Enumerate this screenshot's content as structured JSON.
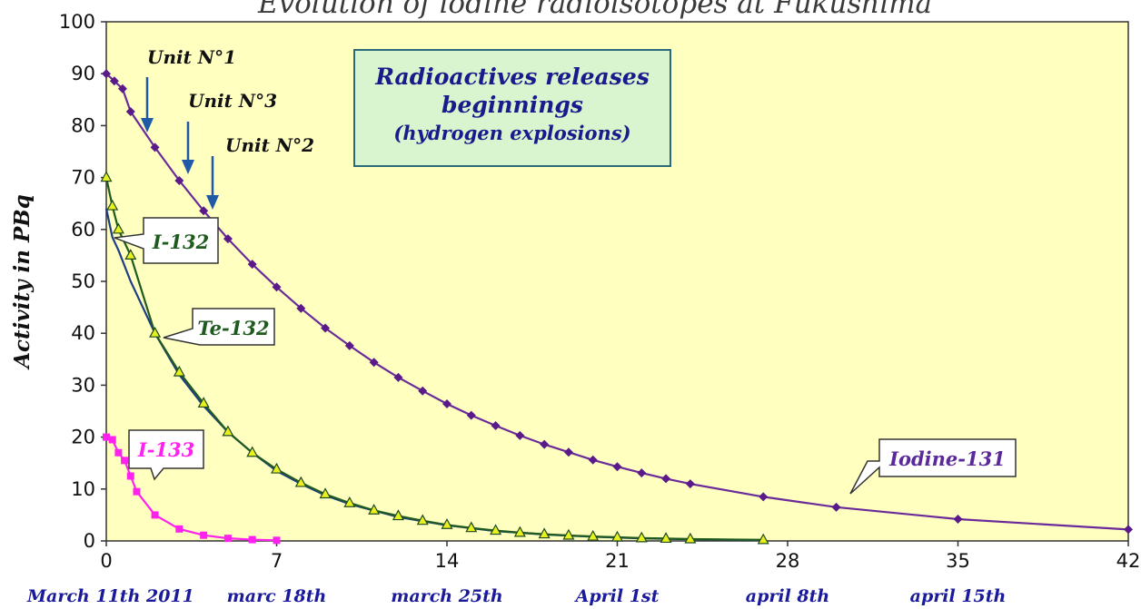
{
  "chart_data": {
    "type": "line",
    "title": "Evolution of iodine radioisotopes at Fukushima",
    "ylabel": "Activity in PBq",
    "xlabel": "",
    "xlim": [
      0,
      42
    ],
    "ylim": [
      0,
      100
    ],
    "x_ticks": [
      "0",
      "7",
      "14",
      "21",
      "28",
      "35",
      "42"
    ],
    "y_ticks": [
      "0",
      "10",
      "20",
      "30",
      "40",
      "50",
      "60",
      "70",
      "80",
      "90",
      "100"
    ],
    "date_labels": [
      {
        "x": 0,
        "text": "March 11th 2011"
      },
      {
        "x": 7,
        "text": "marc 18th"
      },
      {
        "x": 14,
        "text": "march 25th"
      },
      {
        "x": 21,
        "text": "April 1st"
      },
      {
        "x": 28,
        "text": "april 8th"
      },
      {
        "x": 35,
        "text": "april 15th"
      }
    ],
    "grid": false,
    "series": [
      {
        "name": "Iodine-131",
        "color": "#6a2a9a",
        "marker": "diamond",
        "x": [
          0,
          0.33,
          0.67,
          1,
          2,
          3,
          4,
          5,
          6,
          7,
          8,
          9,
          10,
          11,
          12,
          13,
          14,
          15,
          16,
          17,
          18,
          19,
          20,
          21,
          22,
          23,
          24,
          27,
          30,
          35,
          42
        ],
        "y": [
          90,
          88.6,
          87.1,
          82.7,
          75.8,
          69.4,
          63.6,
          58.2,
          53.3,
          48.9,
          44.8,
          41.0,
          37.6,
          34.4,
          31.5,
          28.9,
          26.4,
          24.2,
          22.2,
          20.3,
          18.6,
          17.1,
          15.6,
          14.3,
          13.1,
          12.0,
          11.0,
          8.5,
          6.5,
          4.2,
          2.2
        ]
      },
      {
        "name": "I-132",
        "color": "#1e3c8a",
        "marker": "none",
        "x": [
          0,
          0.25,
          0.5,
          1,
          2,
          3,
          4,
          5,
          6,
          7,
          8,
          9,
          10,
          12,
          14,
          16,
          18,
          20,
          22,
          24,
          26,
          27
        ],
        "y": [
          64,
          58.5,
          56,
          50,
          40,
          32,
          26,
          21,
          17,
          13.5,
          11,
          8.8,
          7.1,
          4.6,
          3.0,
          1.9,
          1.25,
          0.8,
          0.5,
          0.33,
          0.21,
          0.17
        ]
      },
      {
        "name": "Te-132",
        "color": "#1f5a1f",
        "marker": "triangle",
        "x": [
          0,
          0.25,
          0.5,
          1,
          2,
          3,
          4,
          5,
          6,
          7,
          8,
          9,
          10,
          11,
          12,
          13,
          14,
          15,
          16,
          17,
          18,
          19,
          20,
          21,
          22,
          23,
          24,
          27
        ],
        "y": [
          70,
          64.5,
          60,
          55,
          40,
          32.5,
          26.5,
          21,
          17,
          13.8,
          11.2,
          9.0,
          7.3,
          5.9,
          4.8,
          3.9,
          3.1,
          2.5,
          2.0,
          1.6,
          1.3,
          1.05,
          0.85,
          0.7,
          0.55,
          0.45,
          0.35,
          0.2
        ]
      },
      {
        "name": "I-133",
        "color": "#ff22ee",
        "marker": "square",
        "x": [
          0,
          0.25,
          0.5,
          0.75,
          1,
          1.25,
          2,
          3,
          4,
          5,
          6,
          7
        ],
        "y": [
          20,
          19.5,
          17,
          15.5,
          12.5,
          9.5,
          5,
          2.3,
          1.1,
          0.5,
          0.25,
          0.12
        ]
      }
    ],
    "annotations": {
      "box": [
        "Radioactives releases",
        "beginnings",
        "(hydrogen explosions)"
      ],
      "units": [
        {
          "text": "Unit N°1",
          "x": 1.8
        },
        {
          "text": "Unit N°3",
          "x": 3.4
        },
        {
          "text": "Unit N°2",
          "x": 4.4
        }
      ]
    }
  }
}
